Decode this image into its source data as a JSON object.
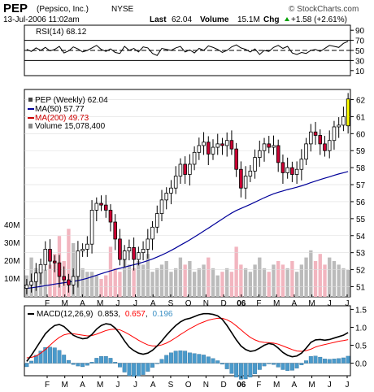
{
  "header": {
    "symbol": "PEP",
    "company": "(Pepsico, Inc.)",
    "exchange": "NYSE",
    "datetime": "13-Jul-2006 11:02am",
    "last_label": "Last",
    "last_value": "62.04",
    "volume_label": "Volume",
    "volume_value": "15.1M",
    "chg_label": "Chg",
    "chg_value": "+1.58 (+2.61%)",
    "chg_icon": "up-arrow-icon",
    "watermark": "© StockCharts.com"
  },
  "colors": {
    "up_candle": "#ffffff",
    "down_candle": "#cc0033",
    "ma50": "#000099",
    "ma200": "#cc0000",
    "volume_up": "#bbbbbb",
    "volume_down": "#f2b5bf",
    "last_candle": "#ffff00",
    "macd": "#000000",
    "signal": "#ff0000",
    "histogram": "#4a9acb"
  },
  "chart_data": [
    {
      "type": "line",
      "panel": "rsi",
      "legend": "RSI(14) 68.12",
      "yticks": [
        90,
        70,
        50,
        30,
        10
      ],
      "reference_lines": [
        70,
        50,
        30
      ],
      "ylim": [
        0,
        100
      ],
      "values": [
        52,
        48,
        55,
        50,
        56,
        49,
        52,
        58,
        45,
        49,
        57,
        53,
        47,
        50,
        55,
        60,
        52,
        48,
        53,
        46,
        44,
        58,
        50,
        54,
        47,
        57,
        55,
        44,
        40,
        54,
        52,
        50,
        55,
        58,
        47,
        51,
        45,
        54,
        50,
        59,
        56,
        52,
        46,
        50,
        57,
        61,
        55,
        52,
        47,
        53,
        42,
        50,
        48,
        56,
        60,
        54,
        58,
        45,
        42,
        46,
        44,
        50,
        52,
        48,
        54,
        60,
        58,
        56,
        64,
        68
      ]
    },
    {
      "type": "candlestick",
      "panel": "price",
      "legend": {
        "title": "PEP (Weekly) 62.04",
        "ma50": "MA(50) 57.77",
        "ma200": "MA(200) 49.73",
        "volume": "Volume 15,078,400"
      },
      "x_labels": [
        "F",
        "M",
        "A",
        "M",
        "J",
        "J",
        "A",
        "S",
        "O",
        "N",
        "D",
        "06",
        "F",
        "M",
        "A",
        "M",
        "J",
        "J"
      ],
      "yticks": [
        62,
        61,
        60,
        59,
        58,
        57,
        56,
        55,
        54,
        53,
        52,
        51
      ],
      "ylim": [
        50.4,
        62.6
      ],
      "volume_ticks": [
        "40M",
        "30M",
        "20M",
        "10M"
      ],
      "volume_max_m": 50,
      "close": [
        51.1,
        51.3,
        51.8,
        52.3,
        53.2,
        52.5,
        52.4,
        51.6,
        51.4,
        51.1,
        51.6,
        53.1,
        53.2,
        53.5,
        55.5,
        55.9,
        55.8,
        55.5,
        54.8,
        53.8,
        52.6,
        53.1,
        53.3,
        52.6,
        53.0,
        53.2,
        53.8,
        54.5,
        55.3,
        56.1,
        56.5,
        56.8,
        57.5,
        58.2,
        57.6,
        58.2,
        58.9,
        59.3,
        59.5,
        58.8,
        59.2,
        59.4,
        59.3,
        59.6,
        59.1,
        57.9,
        56.8,
        57.5,
        57.8,
        58.6,
        59.0,
        59.4,
        59.2,
        59.3,
        58.3,
        57.7,
        58.0,
        57.6,
        57.9,
        58.5,
        59.4,
        60.1,
        59.9,
        59.4,
        59.0,
        59.6,
        60.4,
        60.5,
        61.0,
        62.04
      ],
      "open": [
        50.9,
        51.1,
        51.3,
        51.8,
        52.3,
        53.2,
        52.5,
        52.4,
        51.6,
        51.4,
        51.1,
        51.6,
        53.1,
        53.2,
        53.5,
        55.5,
        55.9,
        55.8,
        55.5,
        54.8,
        53.8,
        52.6,
        53.1,
        53.3,
        52.6,
        53.0,
        53.2,
        53.8,
        54.5,
        55.3,
        56.1,
        56.5,
        56.8,
        57.5,
        58.2,
        57.6,
        58.2,
        58.9,
        59.3,
        59.5,
        58.8,
        59.2,
        59.4,
        59.3,
        59.6,
        59.1,
        57.9,
        56.8,
        57.5,
        57.8,
        58.6,
        59.0,
        59.4,
        59.2,
        59.3,
        58.3,
        57.7,
        58.0,
        57.6,
        57.9,
        58.5,
        59.4,
        60.1,
        59.9,
        59.4,
        59.0,
        59.6,
        60.4,
        60.5,
        60.46
      ],
      "ma50": [
        50.9,
        50.93,
        50.97,
        51.01,
        51.06,
        51.1,
        51.15,
        51.19,
        51.23,
        51.27,
        51.31,
        51.36,
        51.42,
        51.49,
        51.58,
        51.67,
        51.76,
        51.85,
        51.93,
        52.01,
        52.08,
        52.15,
        52.22,
        52.29,
        52.36,
        52.44,
        52.53,
        52.63,
        52.74,
        52.86,
        52.99,
        53.13,
        53.28,
        53.44,
        53.59,
        53.75,
        53.92,
        54.09,
        54.27,
        54.44,
        54.62,
        54.8,
        54.98,
        55.16,
        55.33,
        55.48,
        55.6,
        55.72,
        55.84,
        55.97,
        56.1,
        56.23,
        56.35,
        56.46,
        56.55,
        56.63,
        56.71,
        56.78,
        56.85,
        56.93,
        57.02,
        57.12,
        57.21,
        57.3,
        57.38,
        57.46,
        57.55,
        57.63,
        57.7,
        57.77
      ],
      "volume": [
        12,
        22,
        16,
        14,
        15,
        18,
        24,
        34,
        20,
        38,
        30,
        18,
        16,
        14,
        14,
        12,
        10,
        12,
        28,
        16,
        14,
        26,
        18,
        16,
        20,
        18,
        24,
        14,
        16,
        18,
        20,
        14,
        16,
        22,
        18,
        20,
        14,
        16,
        18,
        22,
        16,
        12,
        14,
        16,
        14,
        28,
        18,
        16,
        14,
        18,
        22,
        16,
        14,
        18,
        20,
        18,
        16,
        20,
        14,
        18,
        22,
        26,
        20,
        24,
        18,
        22,
        20,
        18,
        16,
        15.1
      ]
    },
    {
      "type": "line",
      "panel": "macd",
      "legend": {
        "label": "MACD(12,26,9)",
        "macd": "0.853",
        "signal": "0.657",
        "histogram": "0.196"
      },
      "yticks": [
        1.5,
        1.0,
        0.5,
        0.0
      ],
      "ylim": [
        -0.35,
        1.6
      ],
      "macd": [
        0.05,
        0.22,
        0.42,
        0.62,
        0.82,
        0.95,
        1.05,
        1.08,
        1.02,
        0.9,
        0.78,
        0.72,
        0.68,
        0.7,
        0.8,
        0.95,
        1.05,
        1.1,
        1.08,
        0.98,
        0.82,
        0.62,
        0.45,
        0.35,
        0.28,
        0.25,
        0.28,
        0.36,
        0.48,
        0.62,
        0.78,
        0.92,
        1.05,
        1.15,
        1.22,
        1.25,
        1.3,
        1.35,
        1.38,
        1.38,
        1.36,
        1.32,
        1.22,
        1.05,
        0.85,
        0.65,
        0.48,
        0.38,
        0.33,
        0.35,
        0.42,
        0.5,
        0.55,
        0.52,
        0.42,
        0.3,
        0.22,
        0.18,
        0.2,
        0.28,
        0.42,
        0.58,
        0.65,
        0.66,
        0.64,
        0.66,
        0.7,
        0.74,
        0.78,
        0.853
      ],
      "signal": [
        0.15,
        0.16,
        0.2,
        0.28,
        0.38,
        0.5,
        0.62,
        0.72,
        0.79,
        0.82,
        0.82,
        0.8,
        0.78,
        0.76,
        0.77,
        0.81,
        0.86,
        0.91,
        0.94,
        0.95,
        0.93,
        0.87,
        0.8,
        0.72,
        0.64,
        0.57,
        0.51,
        0.48,
        0.48,
        0.51,
        0.56,
        0.63,
        0.71,
        0.8,
        0.88,
        0.96,
        1.03,
        1.1,
        1.15,
        1.2,
        1.23,
        1.25,
        1.25,
        1.21,
        1.14,
        1.04,
        0.93,
        0.82,
        0.72,
        0.65,
        0.6,
        0.58,
        0.57,
        0.56,
        0.53,
        0.48,
        0.43,
        0.38,
        0.34,
        0.33,
        0.35,
        0.39,
        0.45,
        0.49,
        0.52,
        0.55,
        0.58,
        0.61,
        0.63,
        0.657
      ]
    }
  ]
}
